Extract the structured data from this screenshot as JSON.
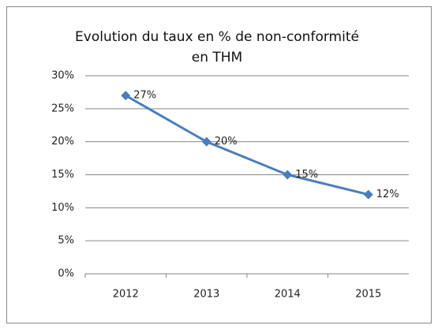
{
  "chart_data": {
    "type": "line",
    "title": "Evolution du taux en % de non-conformité en THM",
    "categories": [
      "2012",
      "2013",
      "2014",
      "2015"
    ],
    "values": [
      27,
      20,
      15,
      12
    ],
    "value_labels": [
      "27%",
      "20%",
      "15%",
      "12%"
    ],
    "color": "#4a7ebb",
    "ylim": [
      0,
      30
    ],
    "yticks": [
      {
        "value": 0,
        "label": "0%"
      },
      {
        "value": 5,
        "label": "5%"
      },
      {
        "value": 10,
        "label": "10%"
      },
      {
        "value": 15,
        "label": "15%"
      },
      {
        "value": 20,
        "label": "20%"
      },
      {
        "value": 25,
        "label": "25%"
      },
      {
        "value": 30,
        "label": "30%"
      }
    ],
    "grid": true
  }
}
